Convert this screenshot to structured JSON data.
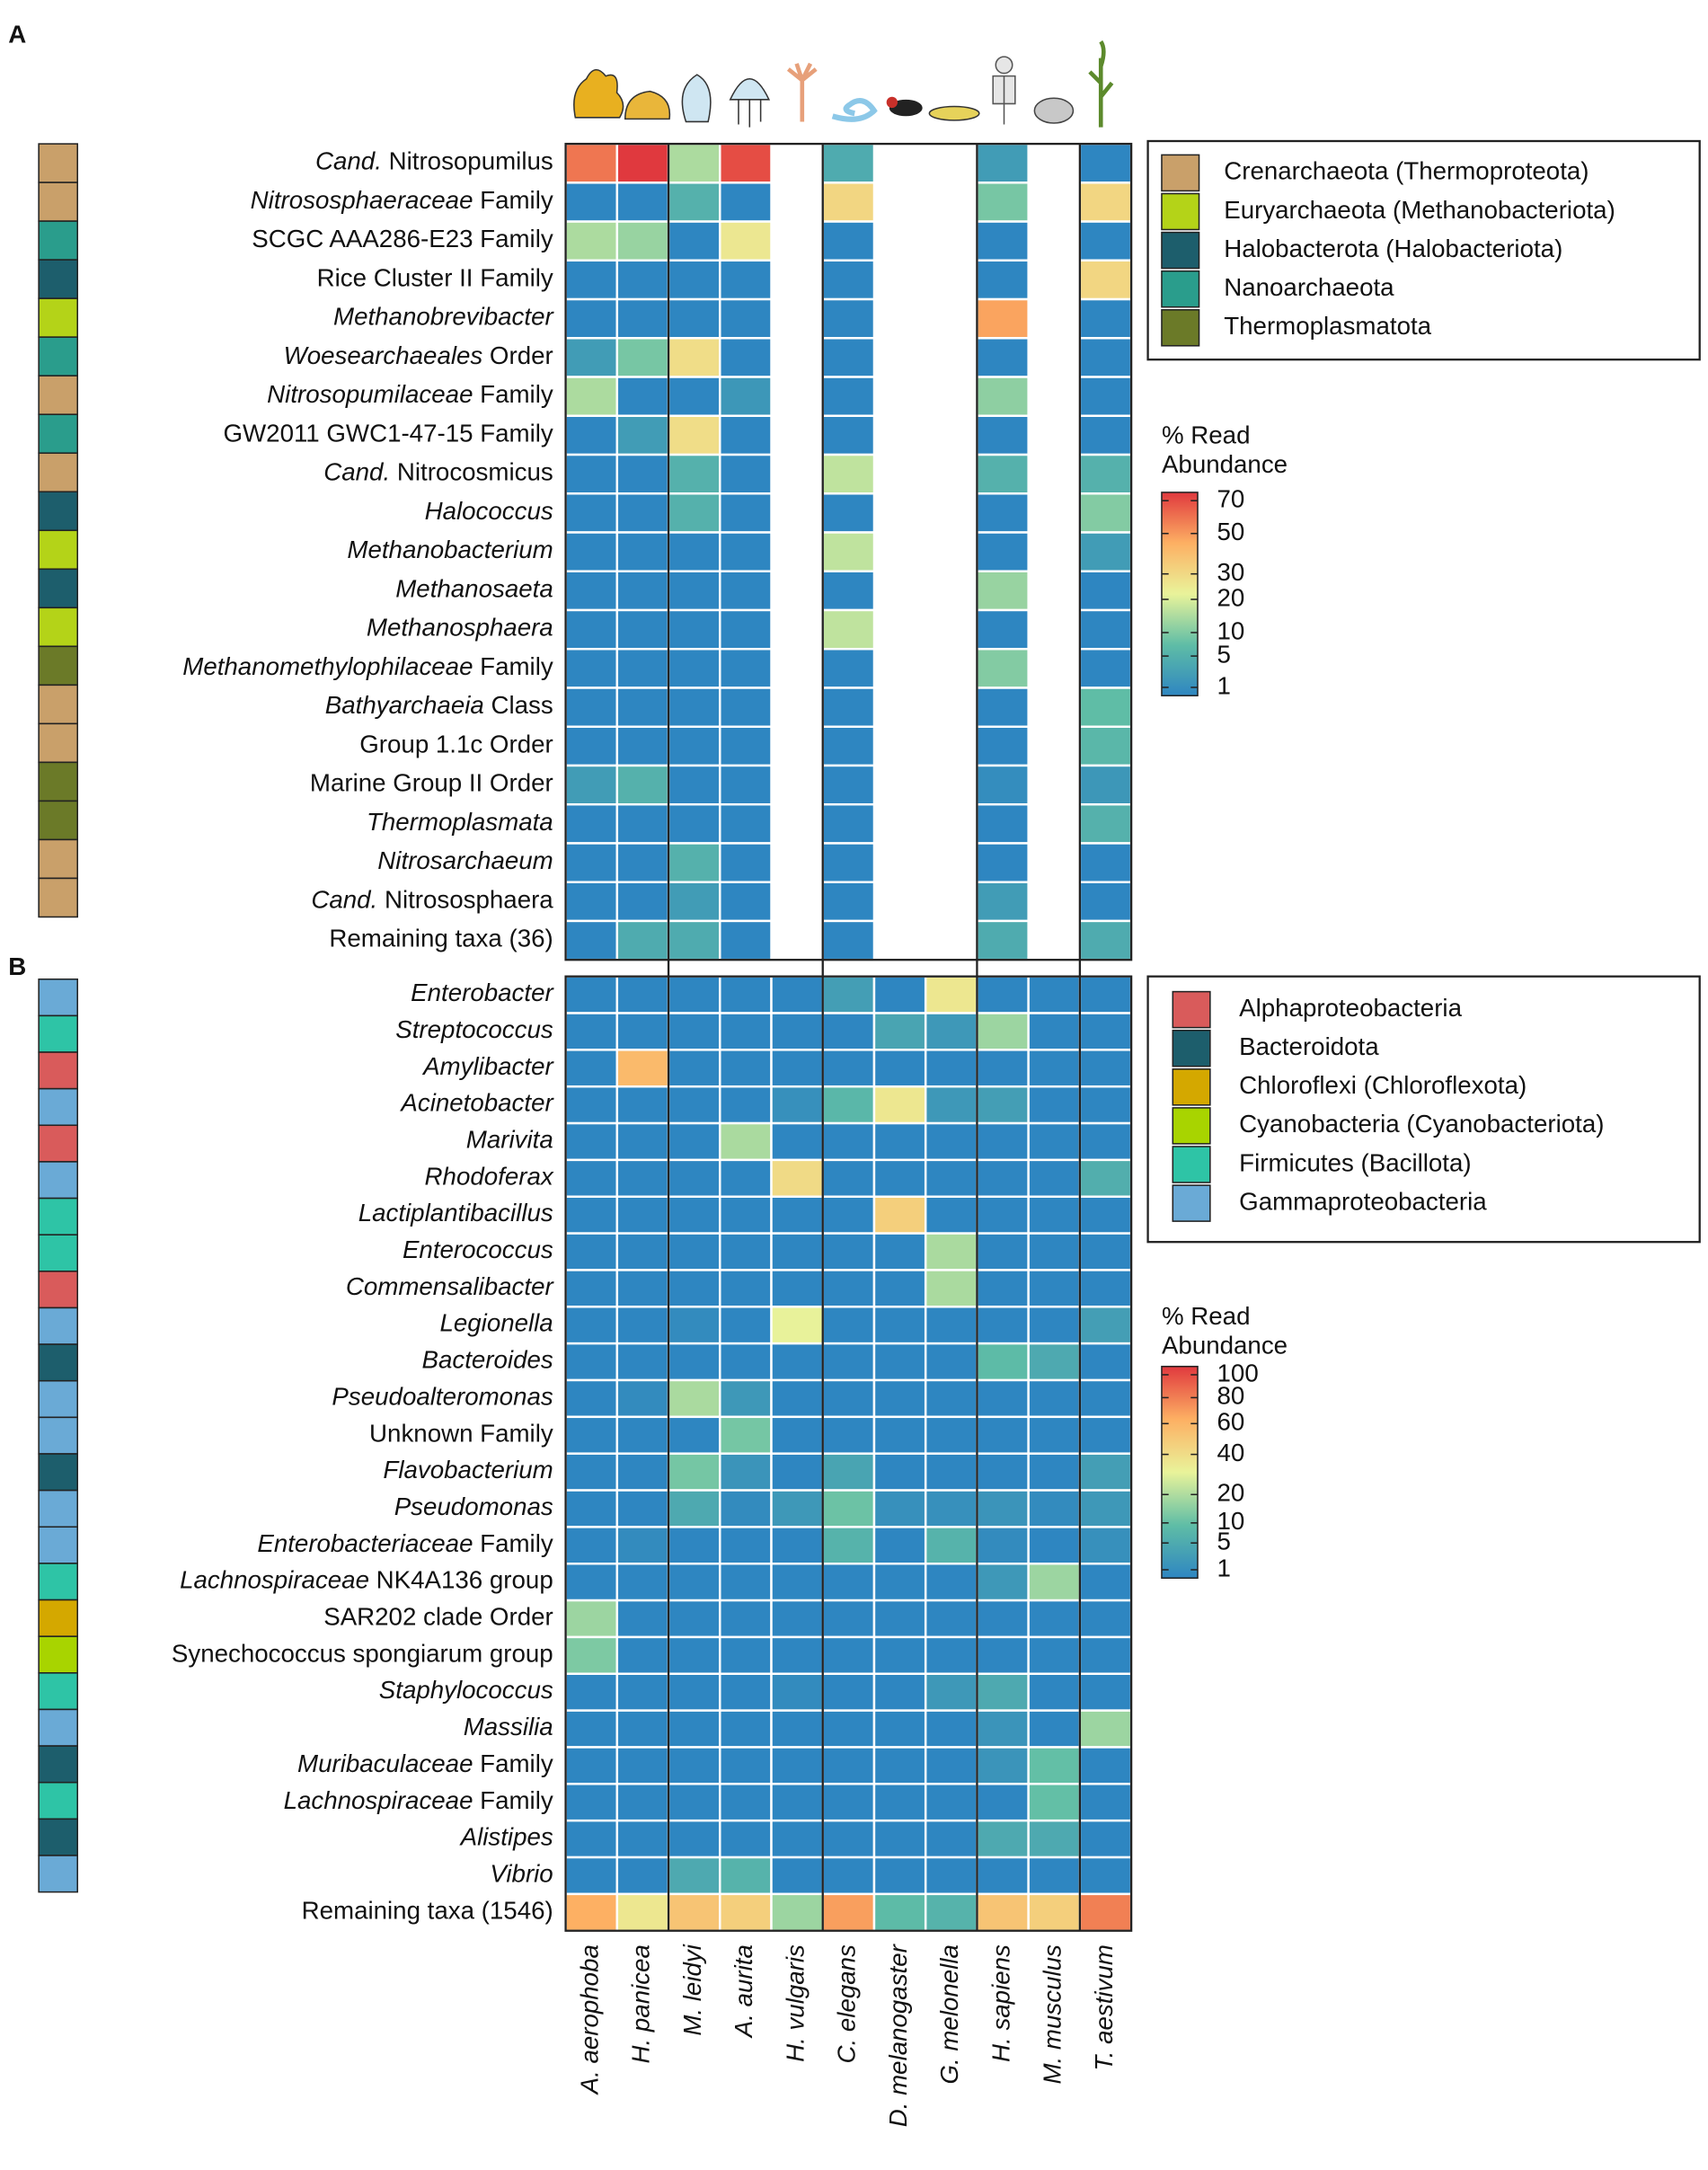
{
  "chart_data": [
    {
      "type": "heatmap",
      "panel": "A",
      "scale": "sqrt",
      "colorscale": [
        "#2e86c1",
        "#5fbda6",
        "#e9f39a",
        "#fdb063",
        "#e0393e"
      ],
      "clim": [
        1,
        70
      ],
      "cticks": [
        1,
        5,
        10,
        20,
        30,
        50,
        70
      ],
      "colorbar_title": [
        "% Read",
        "Abundance"
      ],
      "legend": [
        {
          "name": "Crenarchaeota (Thermoproteota)",
          "color": "#c9a06a"
        },
        {
          "name": "Euryarchaeota (Methanobacteriota)",
          "color": "#b4d318"
        },
        {
          "name": "Halobacterota (Halobacteriota)",
          "color": "#1d5e6c"
        },
        {
          "name": "Nanoarchaeota",
          "color": "#2a9d8c"
        },
        {
          "name": "Thermoplasmatota",
          "color": "#6b7a28"
        }
      ],
      "rows": [
        {
          "parts": [
            {
              "text": "Cand.",
              "italic": true
            },
            {
              "text": "Nitrosopumilus"
            }
          ],
          "color": "#c9a06a"
        },
        {
          "parts": [
            {
              "text": "Nitrososphaeraceae",
              "italic": true
            },
            {
              "text": "Family"
            }
          ],
          "color": "#c9a06a"
        },
        {
          "parts": [
            {
              "text": "SCGC AAA286-E23 Family"
            }
          ],
          "color": "#2a9d8c"
        },
        {
          "parts": [
            {
              "text": "Rice Cluster II Family"
            }
          ],
          "color": "#1d5e6c"
        },
        {
          "parts": [
            {
              "text": "Methanobrevibacter",
              "italic": true
            }
          ],
          "color": "#b4d318"
        },
        {
          "parts": [
            {
              "text": "Woesearchaeales",
              "italic": true
            },
            {
              "text": "Order"
            }
          ],
          "color": "#2a9d8c"
        },
        {
          "parts": [
            {
              "text": "Nitrosopumilaceae",
              "italic": true
            },
            {
              "text": "Family"
            }
          ],
          "color": "#c9a06a"
        },
        {
          "parts": [
            {
              "text": "GW2011 GWC1-47-15 Family"
            }
          ],
          "color": "#2a9d8c"
        },
        {
          "parts": [
            {
              "text": "Cand.",
              "italic": true
            },
            {
              "text": "Nitrocosmicus"
            }
          ],
          "color": "#c9a06a"
        },
        {
          "parts": [
            {
              "text": "Halococcus",
              "italic": true
            }
          ],
          "color": "#1d5e6c"
        },
        {
          "parts": [
            {
              "text": "Methanobacterium",
              "italic": true
            }
          ],
          "color": "#b4d318"
        },
        {
          "parts": [
            {
              "text": "Methanosaeta",
              "italic": true
            }
          ],
          "color": "#1d5e6c"
        },
        {
          "parts": [
            {
              "text": "Methanosphaera",
              "italic": true
            }
          ],
          "color": "#b4d318"
        },
        {
          "parts": [
            {
              "text": "Methanomethylophilaceae",
              "italic": true
            },
            {
              "text": "Family"
            }
          ],
          "color": "#6b7a28"
        },
        {
          "parts": [
            {
              "text": "Bathyarchaeia",
              "italic": true
            },
            {
              "text": "Class"
            }
          ],
          "color": "#c9a06a"
        },
        {
          "parts": [
            {
              "text": "Group 1.1c Order"
            }
          ],
          "color": "#c9a06a"
        },
        {
          "parts": [
            {
              "text": "Marine Group II Order"
            }
          ],
          "color": "#6b7a28"
        },
        {
          "parts": [
            {
              "text": "Thermoplasmata",
              "italic": true
            }
          ],
          "color": "#6b7a28"
        },
        {
          "parts": [
            {
              "text": "Nitrosarchaeum",
              "italic": true
            }
          ],
          "color": "#c9a06a"
        },
        {
          "parts": [
            {
              "text": "Cand.",
              "italic": true
            },
            {
              "text": "Nitrososphaera"
            }
          ],
          "color": "#c9a06a"
        },
        {
          "parts": [
            {
              "text": "Remaining taxa (36)"
            }
          ]
        }
      ],
      "values": [
        [
          55,
          70,
          15,
          65,
          null,
          5,
          null,
          null,
          3,
          null,
          1
        ],
        [
          1,
          1,
          6,
          1,
          null,
          30,
          null,
          null,
          10,
          null,
          30
        ],
        [
          15,
          13,
          1,
          25,
          null,
          1,
          null,
          null,
          1,
          null,
          1
        ],
        [
          1,
          1,
          1,
          1,
          null,
          1,
          null,
          null,
          1,
          null,
          30
        ],
        [
          1,
          1,
          1,
          1,
          null,
          1,
          null,
          null,
          45,
          null,
          1
        ],
        [
          3,
          10,
          28,
          1,
          null,
          1,
          null,
          null,
          1,
          null,
          1
        ],
        [
          15,
          1,
          1,
          2.5,
          null,
          1,
          null,
          null,
          12,
          null,
          1
        ],
        [
          1,
          3,
          28,
          1,
          null,
          1,
          null,
          null,
          1,
          null,
          1
        ],
        [
          1,
          1,
          6,
          1,
          null,
          17,
          null,
          null,
          6,
          null,
          6
        ],
        [
          1,
          1,
          6,
          1,
          null,
          1,
          null,
          null,
          1,
          null,
          11
        ],
        [
          1,
          1,
          1,
          1,
          null,
          17,
          null,
          null,
          1,
          null,
          3
        ],
        [
          1,
          1,
          1,
          1,
          null,
          1,
          null,
          null,
          13,
          null,
          1
        ],
        [
          1,
          1,
          1,
          1,
          null,
          17,
          null,
          null,
          1,
          null,
          1
        ],
        [
          1,
          1,
          1,
          1,
          null,
          1,
          null,
          null,
          11,
          null,
          1
        ],
        [
          1,
          1,
          1,
          1,
          null,
          1,
          null,
          null,
          1,
          null,
          8
        ],
        [
          1,
          1,
          1,
          1,
          null,
          1,
          null,
          null,
          1,
          null,
          7
        ],
        [
          3,
          6,
          1,
          1,
          null,
          1,
          null,
          null,
          1.5,
          null,
          2.5
        ],
        [
          1,
          1,
          1,
          1,
          null,
          1,
          null,
          null,
          1,
          null,
          6
        ],
        [
          1,
          1,
          6,
          1,
          null,
          1,
          null,
          null,
          1,
          null,
          1
        ],
        [
          1,
          1,
          3,
          1,
          null,
          1,
          null,
          null,
          3,
          null,
          1
        ],
        [
          1,
          5,
          5,
          1,
          null,
          1,
          null,
          null,
          5,
          null,
          5
        ]
      ]
    },
    {
      "type": "heatmap",
      "panel": "B",
      "scale": "sqrt",
      "colorscale": [
        "#2e86c1",
        "#5fbda6",
        "#e9f39a",
        "#fdb063",
        "#e0393e"
      ],
      "clim": [
        1,
        100
      ],
      "cticks": [
        1,
        5,
        10,
        20,
        40,
        60,
        80,
        100
      ],
      "colorbar_title": [
        "% Read",
        "Abundance"
      ],
      "columns": [
        "A. aerophoba",
        "H. panicea",
        "M. leidyi",
        "A. aurita",
        "H. vulgaris",
        "C. elegans",
        "D. melanogaster",
        "G. melonella",
        "H. sapiens",
        "M. musculus",
        "T. aestivum"
      ],
      "legend": [
        {
          "name": "Alphaproteobacteria",
          "color": "#d95b5b"
        },
        {
          "name": "Bacteroidota",
          "color": "#1d5e6c"
        },
        {
          "name": "Chloroflexi (Chloroflexota)",
          "color": "#d4a800"
        },
        {
          "name": "Cyanobacteria (Cyanobacteriota)",
          "color": "#a8d400"
        },
        {
          "name": "Firmicutes (Bacillota)",
          "color": "#2ec4a6"
        },
        {
          "name": "Gammaproteobacteria",
          "color": "#6aaad6"
        }
      ],
      "rows": [
        {
          "parts": [
            {
              "text": "Enterobacter",
              "italic": true
            }
          ],
          "color": "#6aaad6"
        },
        {
          "parts": [
            {
              "text": "Streptococcus",
              "italic": true
            }
          ],
          "color": "#2ec4a6"
        },
        {
          "parts": [
            {
              "text": "Amylibacter",
              "italic": true
            }
          ],
          "color": "#d95b5b"
        },
        {
          "parts": [
            {
              "text": "Acinetobacter",
              "italic": true
            }
          ],
          "color": "#6aaad6"
        },
        {
          "parts": [
            {
              "text": "Marivita",
              "italic": true
            }
          ],
          "color": "#d95b5b"
        },
        {
          "parts": [
            {
              "text": "Rhodoferax",
              "italic": true
            }
          ],
          "color": "#6aaad6"
        },
        {
          "parts": [
            {
              "text": "Lactiplantibacillus",
              "italic": true
            }
          ],
          "color": "#2ec4a6"
        },
        {
          "parts": [
            {
              "text": "Enterococcus",
              "italic": true
            }
          ],
          "color": "#2ec4a6"
        },
        {
          "parts": [
            {
              "text": "Commensalibacter",
              "italic": true
            }
          ],
          "color": "#d95b5b"
        },
        {
          "parts": [
            {
              "text": "Legionella",
              "italic": true
            }
          ],
          "color": "#6aaad6"
        },
        {
          "parts": [
            {
              "text": "Bacteroides",
              "italic": true
            }
          ],
          "color": "#1d5e6c"
        },
        {
          "parts": [
            {
              "text": "Pseudoalteromonas",
              "italic": true
            }
          ],
          "color": "#6aaad6"
        },
        {
          "parts": [
            {
              "text": "Unknown Family"
            }
          ],
          "color": "#6aaad6"
        },
        {
          "parts": [
            {
              "text": "Flavobacterium",
              "italic": true
            }
          ],
          "color": "#1d5e6c"
        },
        {
          "parts": [
            {
              "text": "Pseudomonas",
              "italic": true
            }
          ],
          "color": "#6aaad6"
        },
        {
          "parts": [
            {
              "text": "Enterobacteriaceae",
              "italic": true
            },
            {
              "text": "Family"
            }
          ],
          "color": "#6aaad6"
        },
        {
          "parts": [
            {
              "text": "Lachnospiraceae",
              "italic": true
            },
            {
              "text": "NK4A136 group"
            }
          ],
          "color": "#2ec4a6"
        },
        {
          "parts": [
            {
              "text": "SAR202 clade Order"
            }
          ],
          "color": "#d4a800"
        },
        {
          "parts": [
            {
              "text": "Synechococcus spongiarum group"
            }
          ],
          "color": "#a8d400"
        },
        {
          "parts": [
            {
              "text": "Staphylococcus",
              "italic": true
            }
          ],
          "color": "#2ec4a6"
        },
        {
          "parts": [
            {
              "text": "Massilia",
              "italic": true
            }
          ],
          "color": "#6aaad6"
        },
        {
          "parts": [
            {
              "text": "Muribaculaceae",
              "italic": true
            },
            {
              "text": "Family"
            }
          ],
          "color": "#1d5e6c"
        },
        {
          "parts": [
            {
              "text": "Lachnospiraceae",
              "italic": true
            },
            {
              "text": "Family"
            }
          ],
          "color": "#2ec4a6"
        },
        {
          "parts": [
            {
              "text": "Alistipes",
              "italic": true
            }
          ],
          "color": "#1d5e6c"
        },
        {
          "parts": [
            {
              "text": "Vibrio",
              "italic": true
            }
          ],
          "color": "#6aaad6"
        },
        {
          "parts": [
            {
              "text": "Remaining taxa (1546)"
            }
          ]
        }
      ],
      "values": [
        [
          1,
          1,
          1,
          1,
          1,
          4,
          1,
          35,
          1,
          1,
          1
        ],
        [
          1,
          1,
          1,
          1,
          1,
          1,
          5,
          3,
          18,
          1,
          1
        ],
        [
          1,
          55,
          1,
          1,
          1,
          1,
          1,
          1,
          1,
          1,
          1
        ],
        [
          1,
          1,
          1,
          1,
          2,
          9,
          35,
          3,
          4,
          1,
          1
        ],
        [
          1,
          1,
          1,
          20,
          1,
          1,
          1,
          1,
          1,
          1,
          1
        ],
        [
          1,
          1,
          1,
          1,
          40,
          1,
          1,
          1,
          1,
          1,
          7
        ],
        [
          1,
          1,
          1,
          1,
          1,
          1,
          45,
          1,
          1,
          1,
          1
        ],
        [
          1,
          1,
          1,
          1,
          1,
          1,
          1,
          20,
          1,
          1,
          1
        ],
        [
          1,
          1,
          1,
          1,
          1,
          1,
          1,
          20,
          1,
          1,
          1
        ],
        [
          1,
          1,
          1.5,
          1,
          30,
          1,
          1,
          1,
          1,
          1,
          4
        ],
        [
          1,
          1,
          1,
          1,
          1,
          1,
          1,
          1,
          10,
          6,
          1
        ],
        [
          1,
          1.5,
          20,
          3,
          1,
          1,
          1,
          1,
          1,
          1,
          1
        ],
        [
          1,
          1,
          1,
          13,
          1,
          1,
          1,
          1,
          1,
          1,
          1
        ],
        [
          1,
          1,
          13,
          2.5,
          1,
          5,
          1,
          1,
          1,
          1,
          4
        ],
        [
          1,
          1,
          6,
          1.5,
          3,
          12,
          2,
          2,
          2.5,
          1.5,
          3
        ],
        [
          1,
          1.5,
          1,
          1,
          1,
          8,
          1,
          8,
          1.5,
          1,
          2
        ],
        [
          1,
          1,
          1,
          1,
          1,
          1,
          1,
          1,
          3,
          18,
          1
        ],
        [
          18,
          1,
          1,
          1,
          1,
          1,
          1,
          1,
          1,
          1,
          1
        ],
        [
          14,
          1,
          1,
          1,
          1,
          1,
          1,
          1,
          1,
          1,
          1
        ],
        [
          1,
          1,
          1,
          1,
          1.5,
          1,
          1,
          3,
          6,
          1,
          1
        ],
        [
          1,
          1,
          1,
          1,
          1,
          1,
          1,
          1,
          2.5,
          1,
          18
        ],
        [
          1,
          1,
          1,
          1,
          1,
          1,
          1,
          1,
          2.5,
          11,
          1
        ],
        [
          1,
          1,
          1,
          1,
          1,
          1,
          1,
          1,
          1,
          11,
          1
        ],
        [
          1,
          1,
          1,
          1,
          1,
          1,
          1,
          1,
          6,
          6,
          1
        ],
        [
          1,
          1,
          6,
          8,
          1,
          1,
          1,
          1,
          1,
          1,
          1
        ],
        [
          60,
          35,
          50,
          45,
          18,
          65,
          10,
          8,
          50,
          45,
          75
        ]
      ]
    }
  ]
}
